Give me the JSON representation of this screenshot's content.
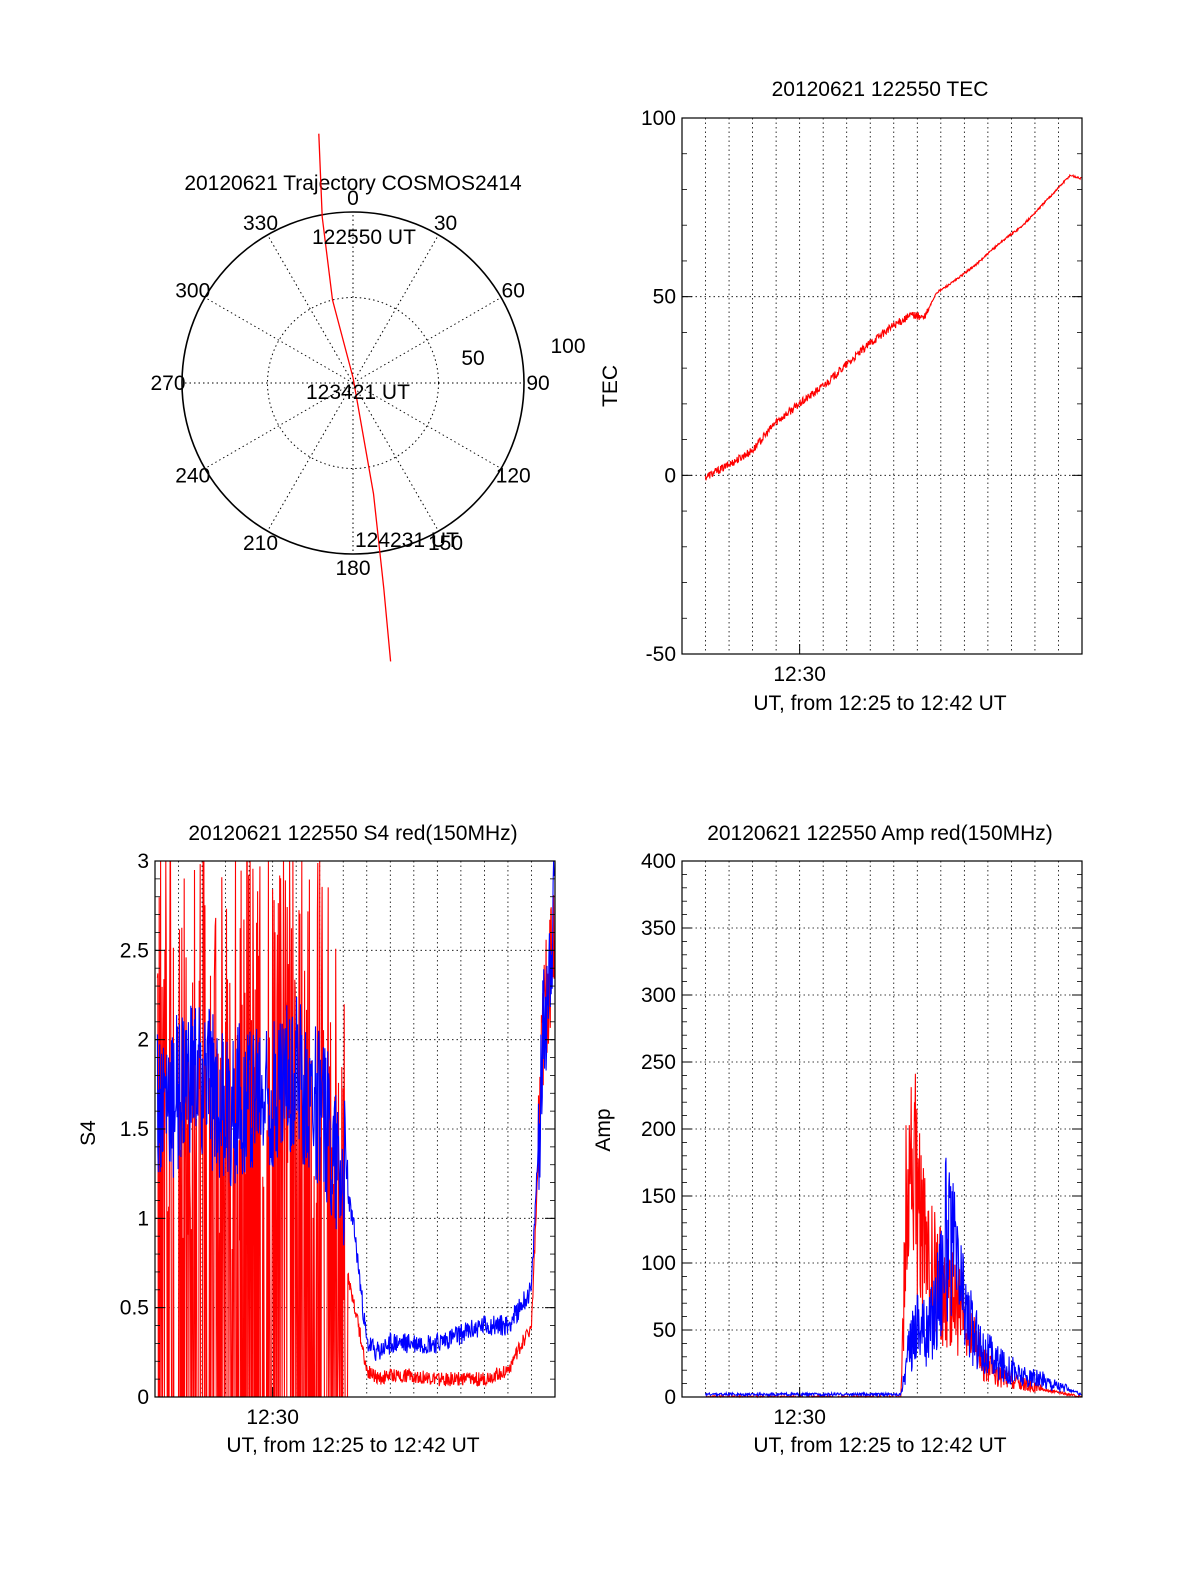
{
  "chart_data": [
    {
      "id": "polar",
      "type": "scatter",
      "title": "20120621 Trajectory COSMOS2414",
      "azimuth_labels": [
        "0",
        "30",
        "60",
        "90",
        "120",
        "150",
        "180",
        "210",
        "240",
        "270",
        "300",
        "330"
      ],
      "azimuth_values": [
        0,
        30,
        60,
        90,
        120,
        150,
        180,
        210,
        240,
        270,
        300,
        330
      ],
      "radial_labels": [
        "50",
        "100"
      ],
      "radial_values": [
        50,
        100
      ],
      "grid": true,
      "series": [
        {
          "color": "#ff0000",
          "points": [
            [
              -20,
              90
            ],
            [
              -18,
              60
            ],
            [
              -12,
              30
            ],
            [
              0,
              2
            ],
            [
              12,
              35
            ],
            [
              18,
              65
            ],
            [
              22,
              88
            ]
          ],
          "annotations": [
            {
              "label": "122550 UT",
              "x": -20,
              "y": 90
            },
            {
              "label": "123421 UT",
              "x": 0,
              "y": 2
            },
            {
              "label": "124231 UT",
              "x": 22,
              "y": 88
            }
          ]
        }
      ]
    },
    {
      "id": "tec",
      "type": "line",
      "title": "20120621 122550 TEC",
      "ylabel": "TEC",
      "xlabel": "UT, from 12:25 to 12:42 UT",
      "ylim": [
        -50,
        100
      ],
      "yticks": [
        "-50",
        "0",
        "50",
        "100"
      ],
      "ytick_values": [
        -50,
        0,
        50,
        100
      ],
      "xtick_labels": [
        "12:30"
      ],
      "xtick_values": [
        30
      ],
      "xlim": [
        25,
        42
      ],
      "grid": true,
      "series": [
        {
          "color": "#ff0000",
          "x": [
            26,
            27,
            28,
            29,
            30,
            31,
            32,
            33,
            34,
            34.8,
            35.3,
            35.8,
            36.5,
            37.5,
            38.5,
            39.5,
            40.5,
            41.5,
            42
          ],
          "y": [
            -0.5,
            3,
            7,
            15,
            20,
            25,
            31,
            37,
            42,
            45,
            44,
            51,
            54,
            59,
            65,
            70,
            77,
            84,
            83
          ]
        }
      ]
    },
    {
      "id": "s4",
      "type": "line",
      "title": "20120621 122550 S4 red(150MHz)",
      "ylabel": "S4",
      "xlabel": "UT, from 12:25 to 12:42 UT",
      "ylim": [
        0,
        3
      ],
      "yticks": [
        "0",
        "0.5",
        "1",
        "1.5",
        "2",
        "2.5",
        "3"
      ],
      "ytick_values": [
        0,
        0.5,
        1,
        1.5,
        2,
        2.5,
        3
      ],
      "xtick_labels": [
        "12:30"
      ],
      "xtick_values": [
        30
      ],
      "xlim": [
        25,
        42
      ],
      "grid": true,
      "series": [
        {
          "color": "#ff0000",
          "x": [
            25.1,
            26,
            27,
            28,
            29,
            30,
            31,
            32,
            32.6,
            33,
            33.5,
            34,
            34.5,
            35,
            36,
            37,
            38,
            39,
            40,
            41,
            41.5,
            42
          ],
          "y": [
            1.7,
            1.6,
            1.5,
            1.5,
            1.6,
            1.6,
            1.7,
            1.5,
            1.0,
            0.8,
            0.5,
            0.15,
            0.1,
            0.12,
            0.12,
            0.1,
            0.1,
            0.1,
            0.15,
            0.4,
            2.0,
            2.7
          ]
        },
        {
          "color": "#0000ff",
          "x": [
            25.1,
            26,
            27,
            28,
            29,
            30,
            31,
            32,
            32.6,
            33,
            33.5,
            34,
            34.5,
            35,
            36,
            37,
            38,
            39,
            40,
            41,
            41.5,
            42
          ],
          "y": [
            1.6,
            1.7,
            1.8,
            1.6,
            1.7,
            1.7,
            1.8,
            1.6,
            1.4,
            1.3,
            0.9,
            0.3,
            0.25,
            0.3,
            0.3,
            0.3,
            0.35,
            0.4,
            0.4,
            0.6,
            2.0,
            2.8
          ]
        }
      ]
    },
    {
      "id": "amp",
      "type": "line",
      "title": "20120621 122550 Amp red(150MHz)",
      "ylabel": "Amp",
      "xlabel": "UT, from 12:25 to 12:42 UT",
      "ylim": [
        0,
        400
      ],
      "yticks": [
        "0",
        "50",
        "100",
        "150",
        "200",
        "250",
        "300",
        "350",
        "400"
      ],
      "ytick_values": [
        0,
        50,
        100,
        150,
        200,
        250,
        300,
        350,
        400
      ],
      "xtick_labels": [
        "12:30"
      ],
      "xtick_values": [
        30
      ],
      "xlim": [
        25,
        42
      ],
      "grid": true,
      "series": [
        {
          "color": "#ff0000",
          "x": [
            26,
            28,
            30,
            32,
            33.5,
            34.3,
            34.6,
            35,
            35.4,
            35.8,
            36.2,
            36.6,
            37,
            37.4,
            37.8,
            38.5,
            39.5,
            40.5,
            42
          ],
          "y": [
            0,
            0,
            0,
            0,
            0,
            0,
            180,
            150,
            100,
            90,
            80,
            70,
            60,
            40,
            25,
            15,
            10,
            5,
            0
          ]
        },
        {
          "color": "#0000ff",
          "x": [
            26,
            28,
            30,
            32,
            33.5,
            34.3,
            34.6,
            35,
            35.4,
            35.8,
            36.2,
            36.6,
            37,
            37.4,
            37.8,
            38.5,
            39.5,
            40.5,
            41.5,
            42
          ],
          "y": [
            2,
            2,
            2,
            2,
            2,
            2,
            30,
            60,
            45,
            70,
            120,
            100,
            70,
            45,
            35,
            25,
            15,
            12,
            5,
            2
          ]
        }
      ]
    }
  ]
}
